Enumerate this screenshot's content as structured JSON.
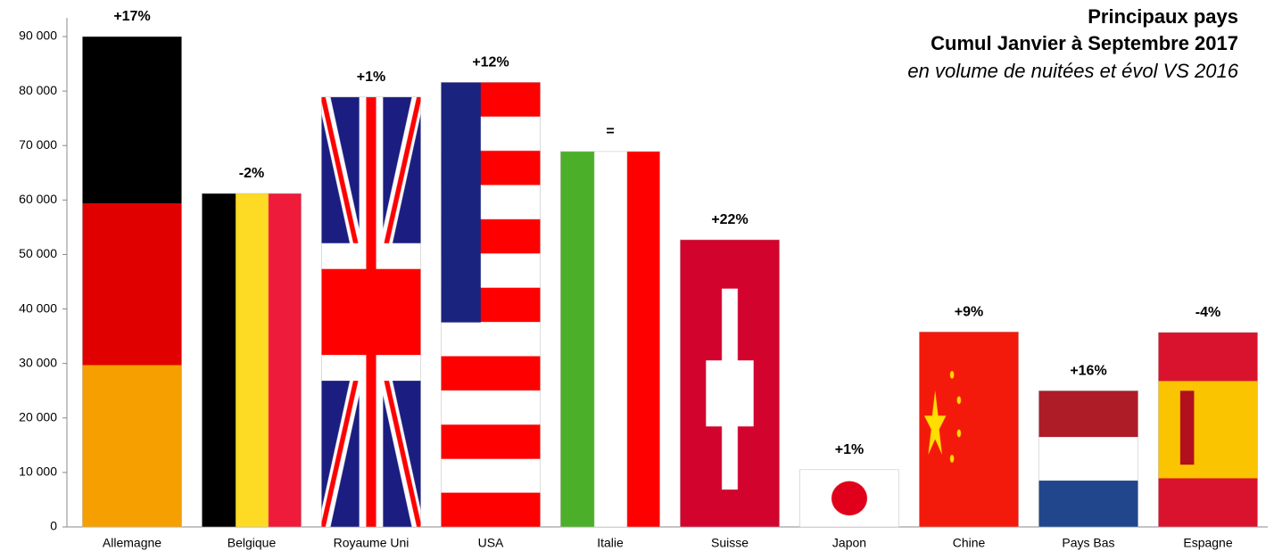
{
  "chart_data": {
    "type": "bar",
    "title": "Principaux pays",
    "subtitle": "Cumul Janvier à Septembre 2017",
    "note": "en volume de nuitées et évol VS  2016",
    "categories": [
      "Allemagne",
      "Belgique",
      "Royaume Uni",
      "USA",
      "Italie",
      "Suisse",
      "Japon",
      "Chine",
      "Pays Bas",
      "Espagne"
    ],
    "values": [
      90000,
      61200,
      78900,
      81600,
      68900,
      52700,
      10500,
      35800,
      25000,
      35700
    ],
    "annotations": [
      "+17%",
      "-2%",
      "+1%",
      "+12%",
      "=",
      "+22%",
      "+1%",
      "+9%",
      "+16%",
      "-4%"
    ],
    "ylim": [
      0,
      90000
    ],
    "yticks": [
      0,
      {
        "value": 10000,
        "label": "10 000"
      },
      {
        "value": 20000,
        "label": "20 000"
      },
      {
        "value": 30000,
        "label": "30 000"
      },
      {
        "value": 40000,
        "label": "40 000"
      },
      {
        "value": 50000,
        "label": "50 000"
      },
      {
        "value": 60000,
        "label": "60 000"
      },
      {
        "value": 70000,
        "label": "70 000"
      },
      {
        "value": 80000,
        "label": "80 000"
      },
      {
        "value": 90000,
        "label": "90 000"
      }
    ]
  }
}
